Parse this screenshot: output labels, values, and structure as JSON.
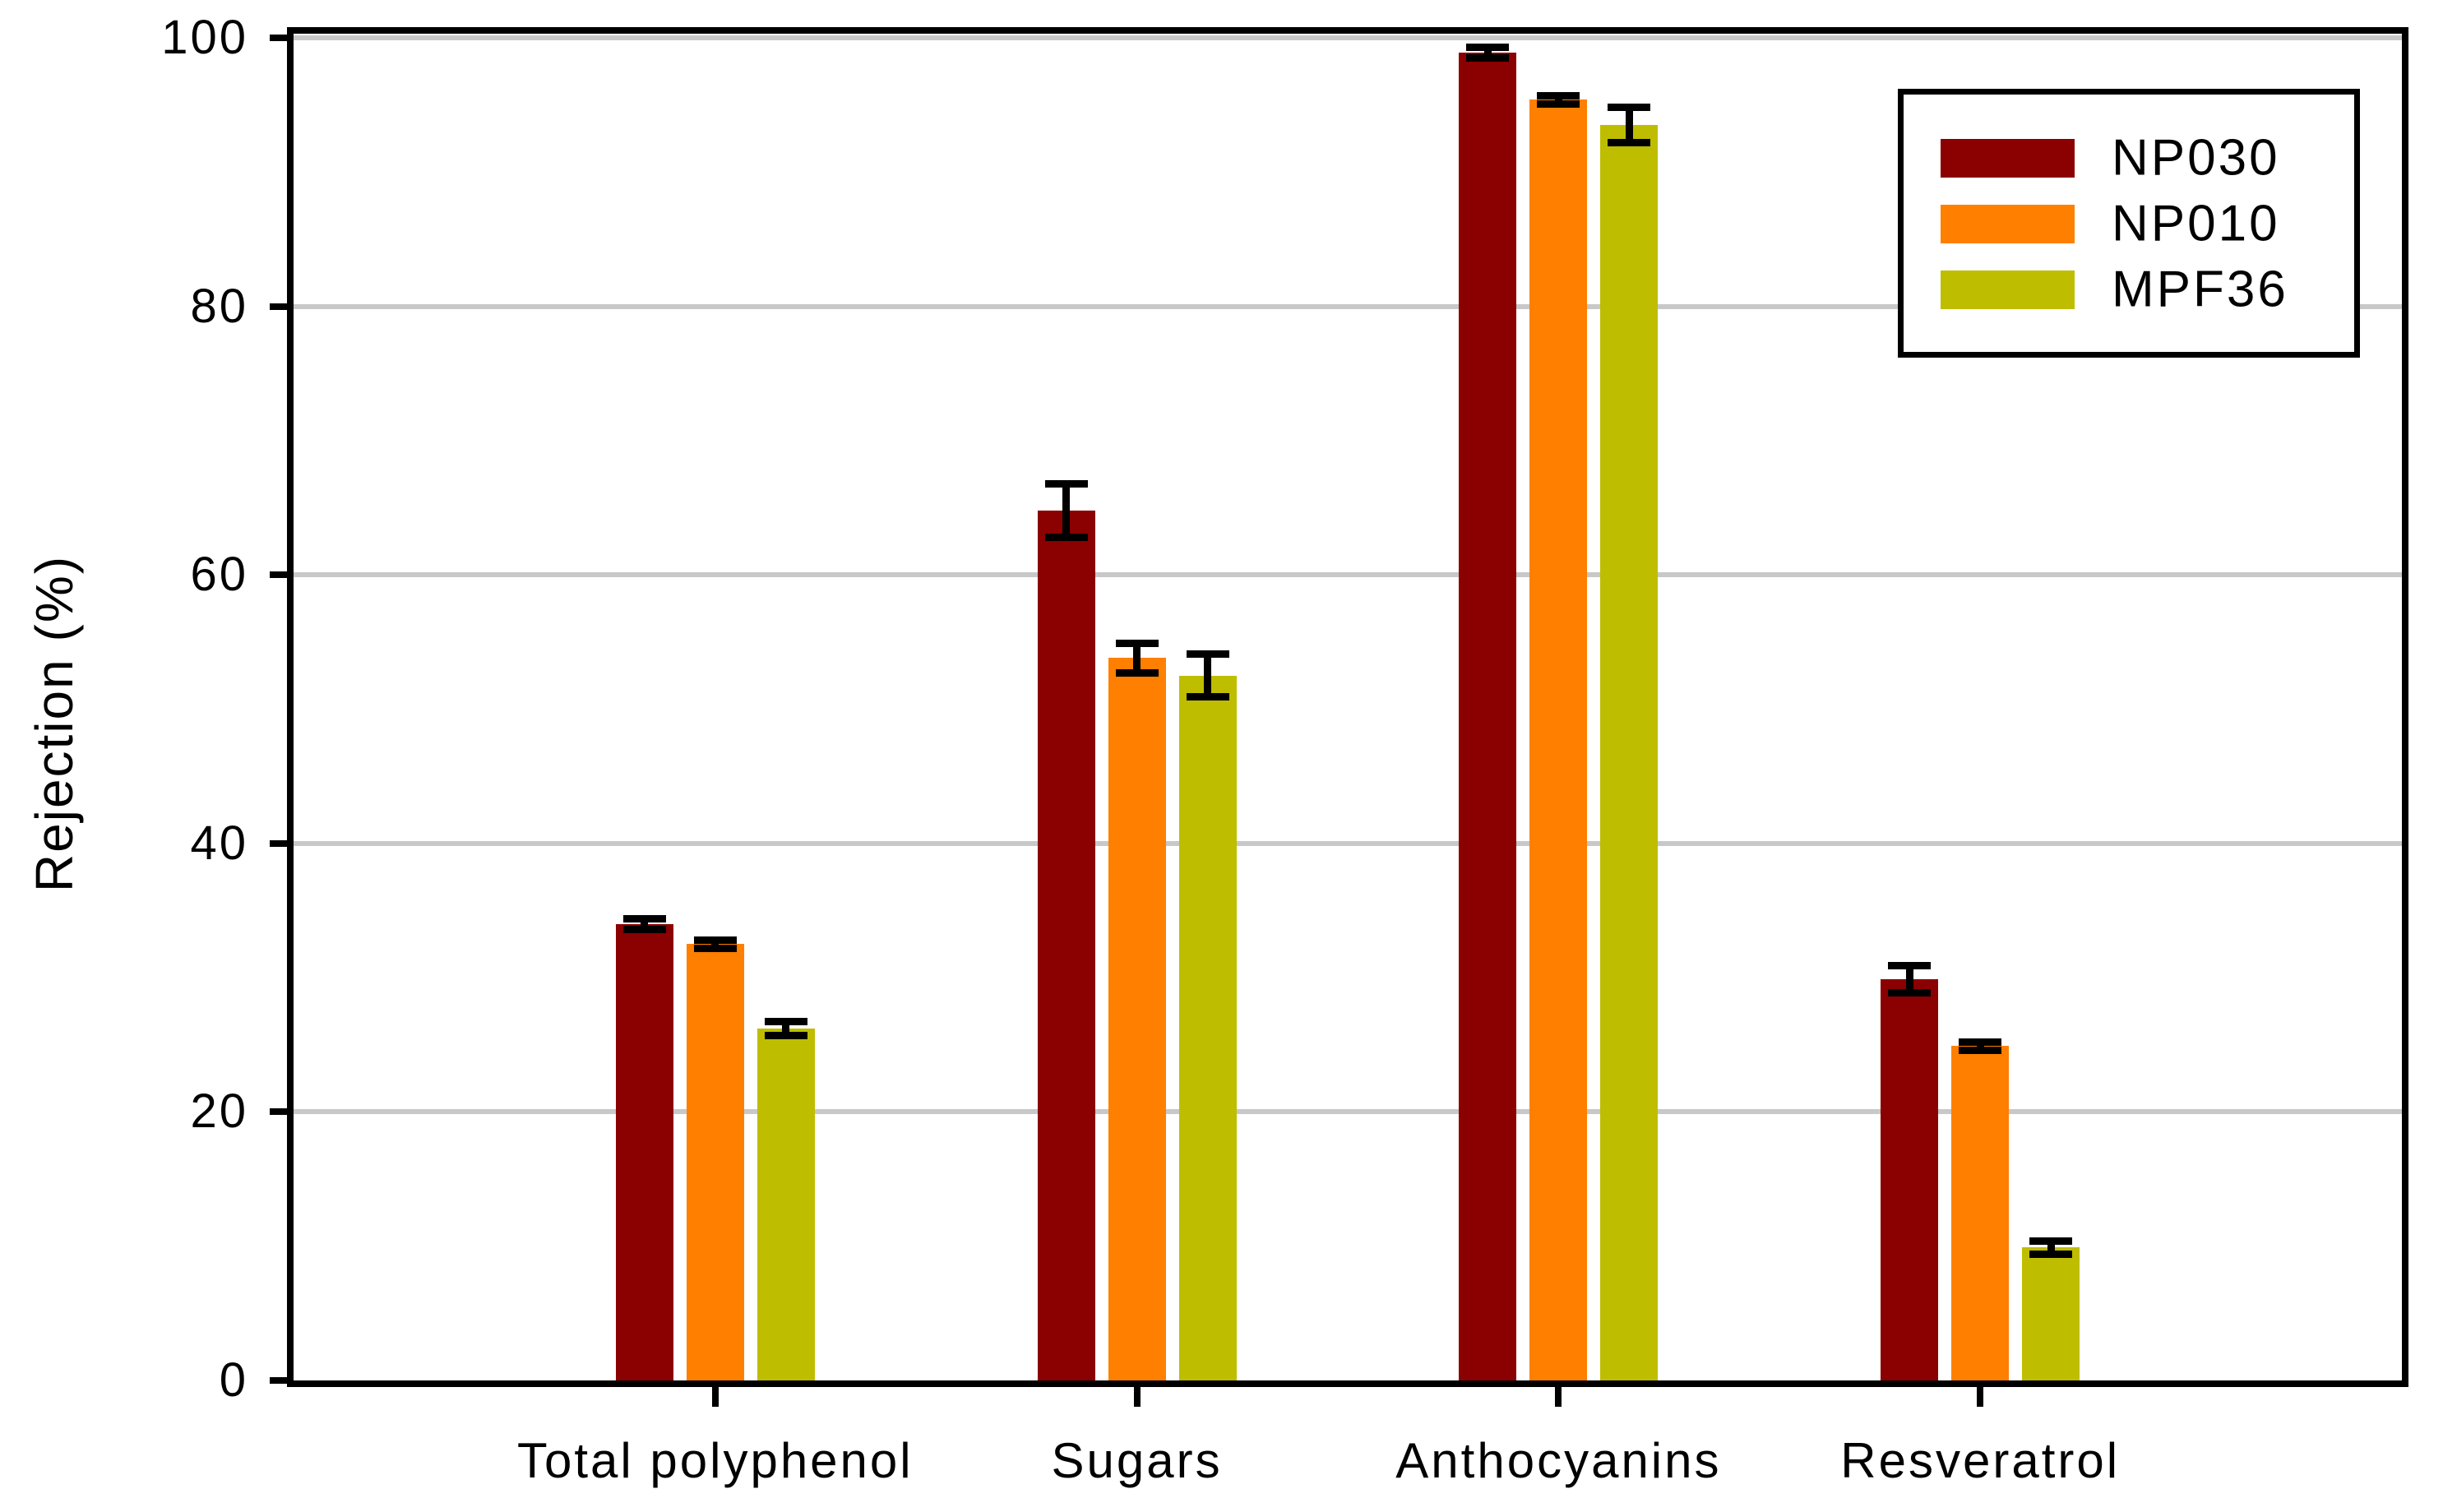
{
  "chart_data": {
    "type": "bar",
    "title": "",
    "xlabel": "",
    "ylabel": "Rejection (%)",
    "ylim": [
      0,
      100
    ],
    "yticks": [
      0,
      20,
      40,
      60,
      80,
      100
    ],
    "grid": "horizontal-gray",
    "legend_position": "top-right",
    "error_bars": true,
    "categories": [
      "Total polyphenol",
      "Sugars",
      "Anthocyanins",
      "Resveratrol"
    ],
    "series": [
      {
        "name": "NP030",
        "color": "#8B0000",
        "values": [
          34.0,
          64.8,
          98.9,
          29.9
        ],
        "errors": [
          0.4,
          2.0,
          0.4,
          1.0
        ]
      },
      {
        "name": "NP010",
        "color": "#FF7F00",
        "values": [
          32.5,
          53.8,
          95.4,
          24.9
        ],
        "errors": [
          0.3,
          1.1,
          0.3,
          0.3
        ]
      },
      {
        "name": "MPF36",
        "color": "#BFBD00",
        "values": [
          26.2,
          52.5,
          93.5,
          9.9
        ],
        "errors": [
          0.5,
          1.6,
          1.3,
          0.5
        ]
      }
    ]
  },
  "colors": {
    "background": "#FFFFFF",
    "axis": "#000000",
    "gridline": "#C8C8C8",
    "error_bar": "#000000"
  }
}
